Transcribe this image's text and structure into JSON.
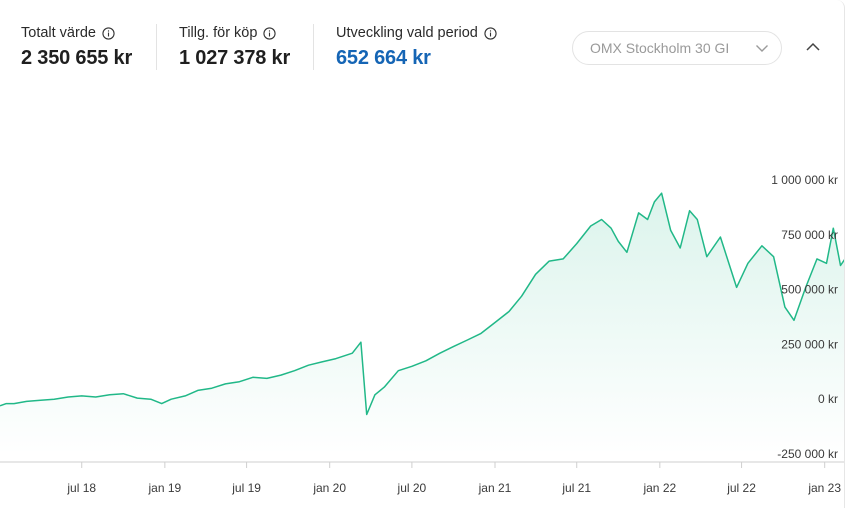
{
  "stats": [
    {
      "label": "Totalt värde",
      "value": "2 350 655 kr",
      "accent": false
    },
    {
      "label": "Tillg. för köp",
      "value": "1 027 378 kr",
      "accent": false
    },
    {
      "label": "Utveckling vald period",
      "value": "652 664 kr",
      "accent": true
    }
  ],
  "index_select": {
    "value": "OMX Stockholm 30 GI"
  },
  "colors": {
    "line": "#21b888",
    "accent_value": "#1565b5",
    "axis": "#cfcfcf"
  },
  "icons": {
    "info": "info-icon",
    "select": "chevron-down-icon",
    "collapse": "chevron-up-icon"
  },
  "chart_data": {
    "type": "area",
    "title": "",
    "xlabel": "",
    "ylabel": "",
    "y_unit": "kr",
    "ylim": [
      -250000,
      1000000
    ],
    "y_ticks": [
      1000000,
      750000,
      500000,
      250000,
      0,
      -250000
    ],
    "y_tick_labels": [
      "1 000 000 kr",
      "750 000 kr",
      "500 000 kr",
      "250 000 kr",
      "0 kr",
      "-250 000 kr"
    ],
    "x_range": [
      "2018-01-01",
      "2023-02-15"
    ],
    "x_ticks": [
      "2018-07-01",
      "2019-01-01",
      "2019-07-01",
      "2020-01-01",
      "2020-07-01",
      "2021-01-01",
      "2021-07-01",
      "2022-01-01",
      "2022-07-01",
      "2023-01-01"
    ],
    "x_tick_labels": [
      "jul 18",
      "jan 19",
      "jul 19",
      "jan 20",
      "jul 20",
      "jan 21",
      "jul 21",
      "jan 22",
      "jul 22",
      "jan 23"
    ],
    "grid": false,
    "legend": "none",
    "series": [
      {
        "x": [
          "2018-01-01",
          "2018-01-15",
          "2018-02-01",
          "2018-02-15",
          "2018-03-01",
          "2018-04-01",
          "2018-05-01",
          "2018-06-01",
          "2018-07-01",
          "2018-08-01",
          "2018-09-01",
          "2018-10-01",
          "2018-11-01",
          "2018-12-01",
          "2018-12-25",
          "2019-01-15",
          "2019-02-15",
          "2019-03-15",
          "2019-04-15",
          "2019-05-15",
          "2019-06-15",
          "2019-07-15",
          "2019-08-15",
          "2019-09-15",
          "2019-10-15",
          "2019-11-15",
          "2019-12-15",
          "2020-01-15",
          "2020-02-05",
          "2020-02-20",
          "2020-03-10",
          "2020-03-23",
          "2020-04-10",
          "2020-05-01",
          "2020-06-01",
          "2020-07-01",
          "2020-08-01",
          "2020-09-01",
          "2020-10-01",
          "2020-11-01",
          "2020-12-01",
          "2021-01-01",
          "2021-02-01",
          "2021-03-01",
          "2021-04-01",
          "2021-05-01",
          "2021-06-01",
          "2021-07-01",
          "2021-08-01",
          "2021-08-25",
          "2021-09-15",
          "2021-10-01",
          "2021-10-20",
          "2021-11-15",
          "2021-12-05",
          "2021-12-20",
          "2022-01-05",
          "2022-01-25",
          "2022-02-15",
          "2022-03-08",
          "2022-03-25",
          "2022-04-15",
          "2022-05-15",
          "2022-06-20",
          "2022-07-15",
          "2022-08-15",
          "2022-09-10",
          "2022-10-05",
          "2022-10-25",
          "2022-11-20",
          "2022-12-15",
          "2023-01-05",
          "2023-01-20",
          "2023-02-05",
          "2023-02-15"
        ],
        "values": [
          -30000,
          -20000,
          -20000,
          -15000,
          -10000,
          -5000,
          0,
          10000,
          15000,
          10000,
          20000,
          25000,
          5000,
          0,
          -20000,
          0,
          15000,
          40000,
          50000,
          70000,
          80000,
          100000,
          95000,
          110000,
          130000,
          155000,
          170000,
          185000,
          200000,
          210000,
          260000,
          -70000,
          20000,
          55000,
          130000,
          150000,
          175000,
          210000,
          240000,
          270000,
          300000,
          350000,
          400000,
          470000,
          570000,
          630000,
          640000,
          710000,
          790000,
          820000,
          780000,
          720000,
          670000,
          850000,
          820000,
          900000,
          940000,
          770000,
          690000,
          860000,
          820000,
          650000,
          740000,
          510000,
          620000,
          700000,
          650000,
          420000,
          360000,
          510000,
          640000,
          620000,
          780000,
          610000,
          640000
        ]
      }
    ]
  }
}
